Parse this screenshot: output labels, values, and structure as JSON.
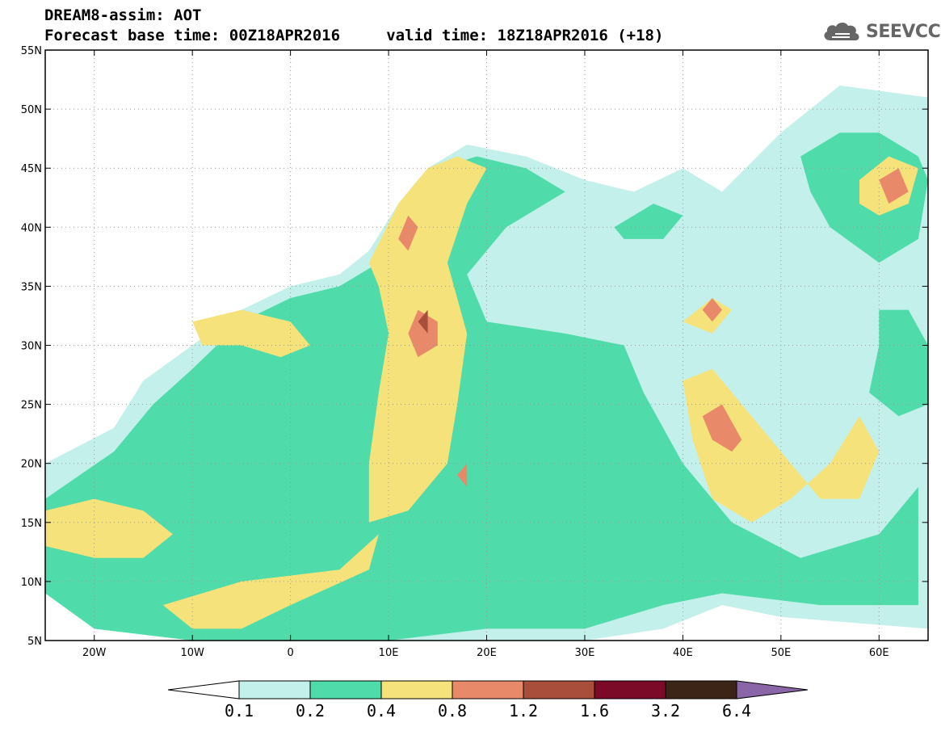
{
  "title": {
    "line1": "DREAM8-assim: AOT",
    "line2": "Forecast base time: 00Z18APR2016     valid time: 18Z18APR2016 (+18)"
  },
  "logo": {
    "text": "SEEVCCC",
    "icon": "cloud-icon",
    "color": "#666666"
  },
  "map": {
    "lon_range": [
      -25,
      65
    ],
    "lat_range": [
      5,
      55
    ],
    "lon_ticks": [
      {
        "value": -20,
        "label": "20W"
      },
      {
        "value": -10,
        "label": "10W"
      },
      {
        "value": 0,
        "label": "0"
      },
      {
        "value": 10,
        "label": "10E"
      },
      {
        "value": 20,
        "label": "20E"
      },
      {
        "value": 30,
        "label": "30E"
      },
      {
        "value": 40,
        "label": "40E"
      },
      {
        "value": 50,
        "label": "50E"
      },
      {
        "value": 60,
        "label": "60E"
      }
    ],
    "lat_ticks": [
      {
        "value": 5,
        "label": "5N"
      },
      {
        "value": 10,
        "label": "10N"
      },
      {
        "value": 15,
        "label": "15N"
      },
      {
        "value": 20,
        "label": "20N"
      },
      {
        "value": 25,
        "label": "25N"
      },
      {
        "value": 30,
        "label": "30N"
      },
      {
        "value": 35,
        "label": "35N"
      },
      {
        "value": 40,
        "label": "40N"
      },
      {
        "value": 45,
        "label": "45N"
      },
      {
        "value": 50,
        "label": "50N"
      },
      {
        "value": 55,
        "label": "55N"
      }
    ],
    "grid": "dotted"
  },
  "colorbar": {
    "labels": [
      "0.1",
      "0.2",
      "0.4",
      "0.8",
      "1.2",
      "1.6",
      "3.2",
      "6.4"
    ],
    "colors": [
      "#ffffff",
      "#c4f0eb",
      "#4fdcaa",
      "#f6e27a",
      "#e8896a",
      "#a84e3a",
      "#7a0a28",
      "#3c2416",
      "#8a66a8"
    ]
  },
  "chart_data": {
    "type": "heatmap",
    "variable": "AOT",
    "levels": [
      0.1,
      0.2,
      0.4,
      0.8,
      1.2,
      1.6,
      3.2,
      6.4
    ],
    "regions": [
      {
        "level": 0.1,
        "polygon": [
          [
            -25,
            20
          ],
          [
            -18,
            23
          ],
          [
            -15,
            27
          ],
          [
            -10,
            30
          ],
          [
            -5,
            33
          ],
          [
            0,
            35
          ],
          [
            5,
            36
          ],
          [
            8,
            38
          ],
          [
            11,
            42
          ],
          [
            14,
            45
          ],
          [
            18,
            47
          ],
          [
            24,
            46
          ],
          [
            30,
            44
          ],
          [
            35,
            43
          ],
          [
            40,
            45
          ],
          [
            44,
            43
          ],
          [
            50,
            48
          ],
          [
            56,
            52
          ],
          [
            65,
            51
          ],
          [
            65,
            6
          ],
          [
            50,
            7
          ],
          [
            44,
            8
          ],
          [
            38,
            6
          ],
          [
            30,
            5
          ],
          [
            20,
            5
          ],
          [
            10,
            5
          ],
          [
            0,
            5
          ],
          [
            -10,
            5
          ],
          [
            -20,
            6
          ],
          [
            -25,
            10
          ]
        ]
      },
      {
        "level": 0.2,
        "polygon": [
          [
            -25,
            17
          ],
          [
            -18,
            21
          ],
          [
            -14,
            25
          ],
          [
            -10,
            28
          ],
          [
            -5,
            32
          ],
          [
            0,
            34
          ],
          [
            5,
            35
          ],
          [
            9,
            37
          ],
          [
            12,
            42
          ],
          [
            15,
            45
          ],
          [
            19,
            46
          ],
          [
            24,
            45
          ],
          [
            28,
            43
          ],
          [
            22,
            40
          ],
          [
            18,
            36
          ],
          [
            20,
            32
          ],
          [
            28,
            31
          ],
          [
            34,
            30
          ],
          [
            36,
            26
          ],
          [
            40,
            20
          ],
          [
            45,
            15
          ],
          [
            52,
            12
          ],
          [
            60,
            14
          ],
          [
            64,
            18
          ],
          [
            64,
            8
          ],
          [
            54,
            8
          ],
          [
            44,
            9
          ],
          [
            38,
            8
          ],
          [
            30,
            6
          ],
          [
            20,
            6
          ],
          [
            10,
            5
          ],
          [
            0,
            5
          ],
          [
            -10,
            5
          ],
          [
            -20,
            6
          ],
          [
            -25,
            9
          ]
        ]
      },
      {
        "level": 0.2,
        "polygon": [
          [
            52,
            46
          ],
          [
            56,
            48
          ],
          [
            60,
            48
          ],
          [
            64,
            46
          ],
          [
            65,
            44
          ],
          [
            64,
            39
          ],
          [
            60,
            37
          ],
          [
            55,
            40
          ],
          [
            53,
            43
          ]
        ]
      },
      {
        "level": 0.2,
        "polygon": [
          [
            60,
            33
          ],
          [
            63,
            33
          ],
          [
            65,
            30
          ],
          [
            65,
            25
          ],
          [
            62,
            24
          ],
          [
            59,
            26
          ],
          [
            60,
            30
          ]
        ]
      },
      {
        "level": 0.2,
        "polygon": [
          [
            33,
            40
          ],
          [
            37,
            42
          ],
          [
            40,
            41
          ],
          [
            38,
            39
          ],
          [
            34,
            39
          ]
        ]
      },
      {
        "level": 0.4,
        "polygon": [
          [
            -25,
            16
          ],
          [
            -20,
            17
          ],
          [
            -15,
            16
          ],
          [
            -12,
            14
          ],
          [
            -15,
            12
          ],
          [
            -20,
            12
          ],
          [
            -25,
            13
          ]
        ]
      },
      {
        "level": 0.4,
        "polygon": [
          [
            -10,
            32
          ],
          [
            -5,
            33
          ],
          [
            0,
            32
          ],
          [
            2,
            30
          ],
          [
            -1,
            29
          ],
          [
            -5,
            30
          ],
          [
            -9,
            30
          ]
        ]
      },
      {
        "level": 0.4,
        "polygon": [
          [
            8,
            37
          ],
          [
            11,
            42
          ],
          [
            14,
            45
          ],
          [
            17,
            46
          ],
          [
            20,
            45
          ],
          [
            18,
            42
          ],
          [
            16,
            37
          ],
          [
            18,
            31
          ],
          [
            17,
            25
          ],
          [
            16,
            20
          ],
          [
            12,
            16
          ],
          [
            8,
            15
          ],
          [
            8,
            20
          ],
          [
            9,
            26
          ],
          [
            10,
            31
          ],
          [
            9,
            35
          ]
        ]
      },
      {
        "level": 0.4,
        "polygon": [
          [
            40,
            27
          ],
          [
            43,
            28
          ],
          [
            46,
            25
          ],
          [
            50,
            21
          ],
          [
            54,
            17
          ],
          [
            58,
            17
          ],
          [
            60,
            21
          ],
          [
            58,
            24
          ],
          [
            55,
            20
          ],
          [
            51,
            17
          ],
          [
            47,
            15
          ],
          [
            43,
            17
          ],
          [
            41,
            22
          ]
        ]
      },
      {
        "level": 0.4,
        "polygon": [
          [
            -13,
            8
          ],
          [
            -5,
            10
          ],
          [
            5,
            11
          ],
          [
            9,
            14
          ],
          [
            8,
            11
          ],
          [
            0,
            8
          ],
          [
            -5,
            6
          ],
          [
            -10,
            6
          ]
        ]
      },
      {
        "level": 0.4,
        "polygon": [
          [
            40,
            32
          ],
          [
            43,
            34
          ],
          [
            45,
            33
          ],
          [
            43,
            31
          ]
        ]
      },
      {
        "level": 0.4,
        "polygon": [
          [
            58,
            44
          ],
          [
            61,
            46
          ],
          [
            64,
            45
          ],
          [
            63,
            42
          ],
          [
            60,
            41
          ],
          [
            58,
            42
          ]
        ]
      },
      {
        "level": 0.8,
        "polygon": [
          [
            11,
            39
          ],
          [
            12,
            41
          ],
          [
            13,
            40
          ],
          [
            12,
            38
          ]
        ]
      },
      {
        "level": 0.8,
        "polygon": [
          [
            12,
            31
          ],
          [
            13,
            33
          ],
          [
            15,
            32
          ],
          [
            15,
            30
          ],
          [
            13,
            29
          ]
        ]
      },
      {
        "level": 0.8,
        "polygon": [
          [
            42,
            33
          ],
          [
            43,
            34
          ],
          [
            44,
            33
          ],
          [
            43,
            32
          ]
        ]
      },
      {
        "level": 0.8,
        "polygon": [
          [
            42,
            24
          ],
          [
            44,
            25
          ],
          [
            46,
            22
          ],
          [
            45,
            21
          ],
          [
            43,
            22
          ]
        ]
      },
      {
        "level": 0.8,
        "polygon": [
          [
            60,
            44
          ],
          [
            62,
            45
          ],
          [
            63,
            43
          ],
          [
            61,
            42
          ]
        ]
      },
      {
        "level": 0.8,
        "polygon": [
          [
            17,
            19
          ],
          [
            18,
            20
          ],
          [
            18,
            18
          ]
        ]
      },
      {
        "level": 1.2,
        "polygon": [
          [
            13,
            32
          ],
          [
            14,
            33
          ],
          [
            14,
            31
          ]
        ]
      }
    ]
  }
}
